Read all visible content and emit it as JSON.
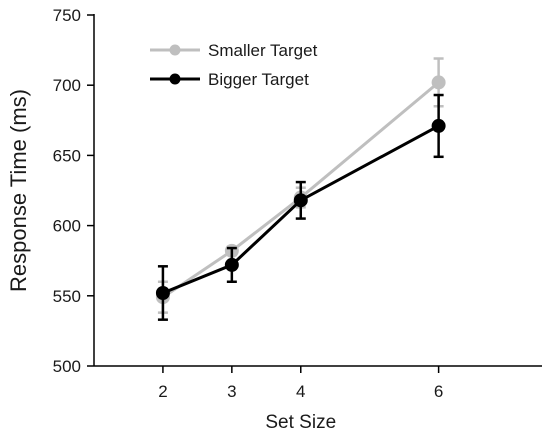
{
  "chart_data": {
    "type": "line",
    "title": "",
    "xlabel": "Set Size",
    "ylabel": "Response Time (ms)",
    "x": [
      2,
      3,
      4,
      6
    ],
    "xlim": [
      1,
      7.5
    ],
    "ylim": [
      500,
      750
    ],
    "yticks": [
      500,
      550,
      600,
      650,
      700,
      750
    ],
    "grid": false,
    "legend_position": "top-left",
    "series": [
      {
        "name": "Smaller Target",
        "color": "#bfbfbf",
        "values": [
          549,
          582,
          620,
          702
        ],
        "error": [
          11,
          3,
          7,
          17
        ]
      },
      {
        "name": "Bigger Target",
        "color": "#000000",
        "values": [
          552,
          572,
          618,
          671
        ],
        "error": [
          19,
          12,
          13,
          22
        ]
      }
    ]
  }
}
